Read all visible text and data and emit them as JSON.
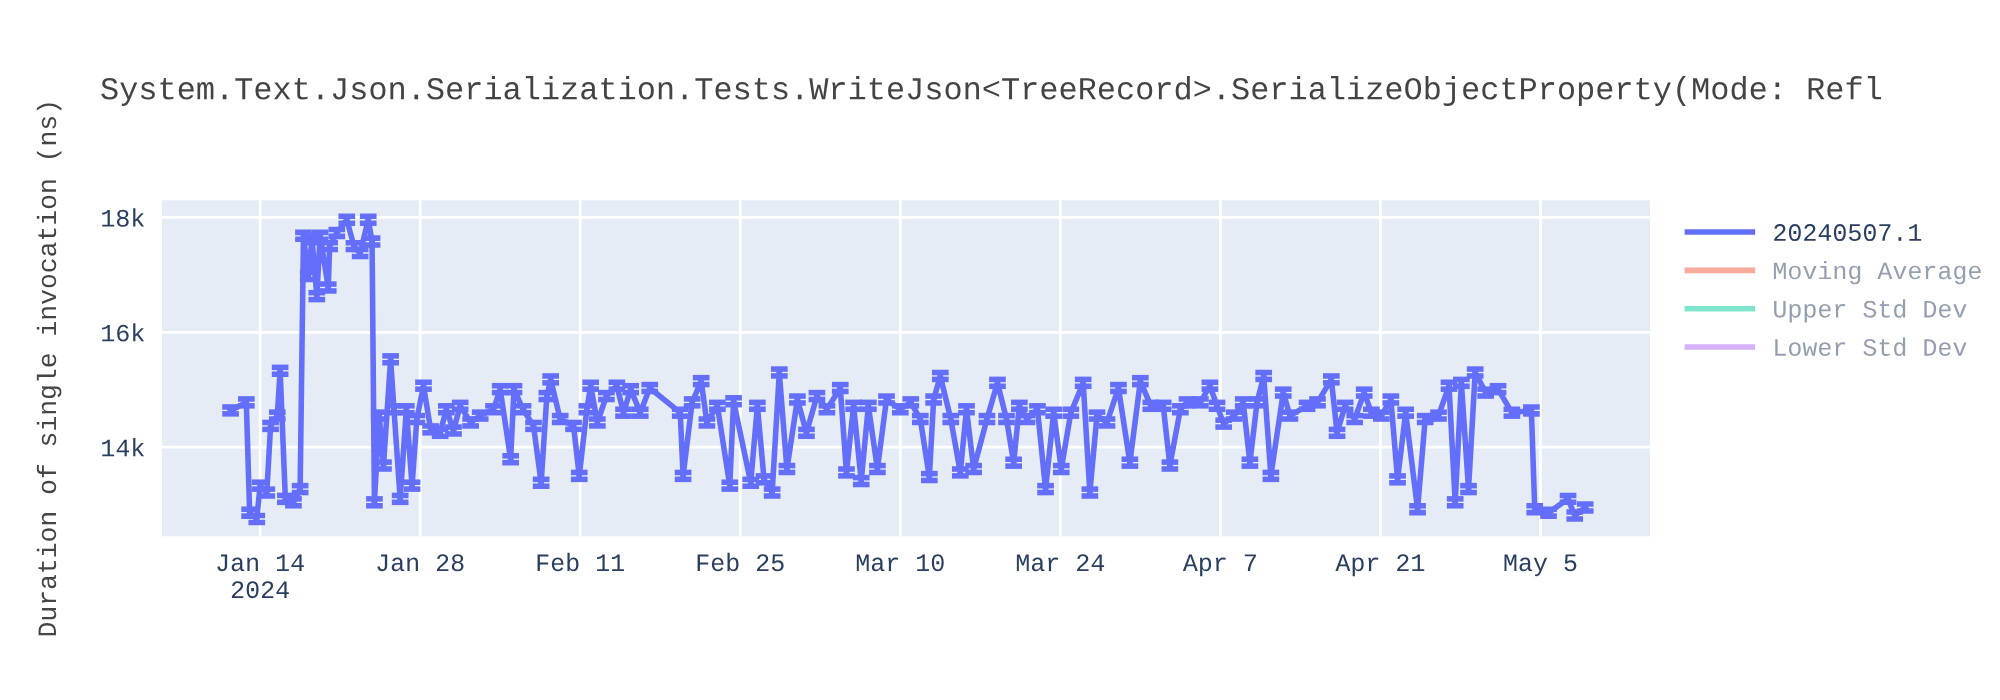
{
  "chart_data": {
    "type": "line",
    "title": "System.Text.Json.Serialization.Tests.WriteJson<TreeRecord>.SerializeObjectProperty(Mode: Refl",
    "ylabel": "Duration of single invocation (ns)",
    "xlim": [
      "2024-01-05T10:00",
      "2024-05-14T14:00"
    ],
    "xticks": [
      {
        "value": "2024-01-14",
        "label": "Jan 14\n2024"
      },
      {
        "value": "2024-01-28",
        "label": "Jan 28"
      },
      {
        "value": "2024-02-11",
        "label": "Feb 11"
      },
      {
        "value": "2024-02-25",
        "label": "Feb 25"
      },
      {
        "value": "2024-03-10",
        "label": "Mar 10"
      },
      {
        "value": "2024-03-24",
        "label": "Mar 24"
      },
      {
        "value": "2024-04-07",
        "label": "Apr 7"
      },
      {
        "value": "2024-04-21",
        "label": "Apr 21"
      },
      {
        "value": "2024-05-05",
        "label": "May 5"
      }
    ],
    "ylim": [
      12450,
      18300
    ],
    "yticks": [
      {
        "value": 14000,
        "label": "14k"
      },
      {
        "value": 16000,
        "label": "16k"
      },
      {
        "value": 18000,
        "label": "18k"
      }
    ],
    "grid": true,
    "legend": "right",
    "marker": "none",
    "line_style": "solid",
    "series": [
      {
        "name": "20240507.1",
        "color": "#636efa",
        "x": [
          "2024-01-11T10:00",
          "2024-01-12T19:00",
          "2024-01-13T02:00",
          "2024-01-13T17:00",
          "2024-01-14T00:00",
          "2024-01-14T14:00",
          "2024-01-14T22:00",
          "2024-01-15T12:00",
          "2024-01-15T18:00",
          "2024-01-16T05:00",
          "2024-01-16T22:00",
          "2024-01-17T12:00",
          "2024-01-17T19:00",
          "2024-01-18T05:00",
          "2024-01-18T13:00",
          "2024-01-18T23:00",
          "2024-01-19T06:00",
          "2024-01-19T23:00",
          "2024-01-20T02:00",
          "2024-01-20T17:00",
          "2024-01-21T14:00",
          "2024-01-22T05:00",
          "2024-01-22T18:00",
          "2024-01-23T11:00",
          "2024-01-23T19:00",
          "2024-01-24T00:00",
          "2024-01-24T10:00",
          "2024-01-24T19:00",
          "2024-01-25T10:00",
          "2024-01-25T17:00",
          "2024-01-26T06:00",
          "2024-01-26T19:00",
          "2024-01-27T07:00",
          "2024-01-27T17:00",
          "2024-01-28T07:00",
          "2024-01-28T22:00",
          "2024-01-29T18:00",
          "2024-01-30T07:00",
          "2024-01-30T22:00",
          "2024-01-31T12:00",
          "2024-02-01T10:00",
          "2024-02-02T06:00",
          "2024-02-03T10:00",
          "2024-02-04T00:00",
          "2024-02-04T22:00",
          "2024-02-05T05:00",
          "2024-02-06T00:00",
          "2024-02-06T22:00",
          "2024-02-07T14:00",
          "2024-02-08T02:00",
          "2024-02-08T10:00",
          "2024-02-09T06:00",
          "2024-02-10T10:00",
          "2024-02-10T22:00",
          "2024-02-11T14:00",
          "2024-02-11T22:00",
          "2024-02-12T12:00",
          "2024-02-13T07:00",
          "2024-02-14T05:00",
          "2024-02-14T19:00",
          "2024-02-15T10:00",
          "2024-02-16T06:00",
          "2024-02-17T02:00",
          "2024-02-19T18:00",
          "2024-02-20T00:00",
          "2024-02-20T19:00",
          "2024-02-21T14:00",
          "2024-02-22T02:00",
          "2024-02-23T00:00",
          "2024-02-24T02:00",
          "2024-02-24T10:00",
          "2024-02-25T22:00",
          "2024-02-26T12:00",
          "2024-02-27T02:00",
          "2024-02-27T19:00",
          "2024-02-28T10:00",
          "2024-02-29T02:00",
          "2024-03-01T00:00",
          "2024-03-01T19:00",
          "2024-03-02T17:00",
          "2024-03-03T14:00",
          "2024-03-04T18:00",
          "2024-03-05T07:00",
          "2024-03-05T22:00",
          "2024-03-06T14:00",
          "2024-03-07T05:00",
          "2024-03-08T00:00",
          "2024-03-08T19:00",
          "2024-03-10T00:00",
          "2024-03-10T22:00",
          "2024-03-11T18:00",
          "2024-03-12T13:00",
          "2024-03-12T22:00",
          "2024-03-13T12:00",
          "2024-03-14T10:00",
          "2024-03-15T06:00",
          "2024-03-15T19:00",
          "2024-03-16T10:00",
          "2024-03-17T14:00",
          "2024-03-18T12:00",
          "2024-03-19T07:00",
          "2024-03-19T22:00",
          "2024-03-20T10:00",
          "2024-03-21T02:00",
          "2024-03-22T00:00",
          "2024-03-22T17:00",
          "2024-03-23T10:00",
          "2024-03-24T02:00",
          "2024-03-24T22:00",
          "2024-03-26T00:00",
          "2024-03-26T14:00",
          "2024-03-27T05:00",
          "2024-03-28T02:00",
          "2024-03-29T02:00",
          "2024-03-30T02:00",
          "2024-03-31T00:00",
          "2024-03-31T22:00",
          "2024-04-02T00:00",
          "2024-04-02T14:00",
          "2024-04-03T12:00",
          "2024-04-04T02:00",
          "2024-04-05T06:00",
          "2024-04-06T02:00",
          "2024-04-06T17:00",
          "2024-04-07T07:00",
          "2024-04-08T05:00",
          "2024-04-09T00:00",
          "2024-04-09T14:00",
          "2024-04-10T05:00",
          "2024-04-10T19:00",
          "2024-04-11T10:00",
          "2024-04-12T12:00",
          "2024-04-13T02:00",
          "2024-04-14T14:00",
          "2024-04-15T12:00",
          "2024-04-16T17:00",
          "2024-04-17T05:00",
          "2024-04-17T22:00",
          "2024-04-18T18:00",
          "2024-04-19T14:00",
          "2024-04-20T05:00",
          "2024-04-21T02:00",
          "2024-04-21T22:00",
          "2024-04-22T12:00",
          "2024-04-23T05:00",
          "2024-04-24T06:00",
          "2024-04-24T22:00",
          "2024-04-26T02:00",
          "2024-04-27T00:00",
          "2024-04-27T13:00",
          "2024-04-28T02:00",
          "2024-04-28T17:00",
          "2024-04-29T07:00",
          "2024-04-30T05:00",
          "2024-05-01T07:00",
          "2024-05-02T12:00",
          "2024-05-04T05:00",
          "2024-05-04T12:00",
          "2024-05-05T17:00",
          "2024-05-07T10:00",
          "2024-05-08T00:00",
          "2024-05-08T22:00"
        ],
        "values": [
          14640,
          14780,
          12860,
          12750,
          13330,
          13210,
          14370,
          14550,
          15330,
          13100,
          13040,
          13270,
          17680,
          16980,
          17620,
          16630,
          17680,
          16780,
          17500,
          17730,
          17960,
          17500,
          17380,
          17960,
          17580,
          13040,
          14550,
          13680,
          15530,
          14660,
          13100,
          14660,
          13330,
          14490,
          15070,
          14310,
          14250,
          14660,
          14290,
          14720,
          14430,
          14550,
          14660,
          15010,
          13790,
          15010,
          14660,
          14370,
          13380,
          14890,
          15180,
          14490,
          14370,
          13500,
          14660,
          15070,
          14430,
          14890,
          15070,
          14600,
          15010,
          14600,
          15030,
          14600,
          13500,
          14780,
          15150,
          14430,
          14720,
          13330,
          14800,
          13380,
          14720,
          13440,
          13210,
          15300,
          13620,
          14830,
          14250,
          14890,
          14660,
          15030,
          13560,
          14720,
          13410,
          14720,
          13620,
          14830,
          14660,
          14780,
          14490,
          13480,
          14830,
          15240,
          14490,
          13560,
          14660,
          13620,
          14490,
          15120,
          14490,
          13730,
          14720,
          14490,
          14660,
          13270,
          14600,
          13620,
          14600,
          15120,
          13210,
          14550,
          14430,
          15030,
          13730,
          15150,
          14720,
          14720,
          13680,
          14660,
          14780,
          14780,
          15070,
          14720,
          14410,
          14550,
          14780,
          13730,
          14780,
          15240,
          13500,
          14950,
          14550,
          14720,
          14780,
          15180,
          14250,
          14720,
          14490,
          14950,
          14600,
          14550,
          14830,
          13440,
          14600,
          12920,
          14490,
          14550,
          15070,
          13040,
          15120,
          13270,
          15300,
          14950,
          15010,
          14600,
          14640,
          12920,
          12860,
          13100,
          12810,
          12950
        ],
        "errors": [
          60,
          60,
          60,
          60,
          60,
          60,
          60,
          60,
          60,
          60,
          60,
          60,
          60,
          60,
          60,
          60,
          60,
          60,
          60,
          60,
          60,
          60,
          60,
          60,
          60,
          60,
          60,
          60,
          60,
          60,
          60,
          60,
          60,
          60,
          60,
          60,
          60,
          60,
          60,
          60,
          60,
          60,
          60,
          60,
          60,
          60,
          60,
          60,
          60,
          60,
          60,
          60,
          60,
          60,
          60,
          60,
          60,
          60,
          60,
          60,
          60,
          60,
          60,
          60,
          60,
          60,
          60,
          60,
          60,
          60,
          60,
          60,
          60,
          60,
          60,
          60,
          60,
          60,
          60,
          60,
          60,
          60,
          60,
          60,
          60,
          60,
          60,
          60,
          60,
          60,
          60,
          60,
          60,
          60,
          60,
          60,
          60,
          60,
          60,
          60,
          60,
          60,
          60,
          60,
          60,
          60,
          60,
          60,
          60,
          60,
          60,
          60,
          60,
          60,
          60,
          60,
          60,
          60,
          60,
          60,
          60,
          60,
          60,
          60,
          60,
          60,
          60,
          60,
          60,
          60,
          60,
          60,
          60,
          60,
          60,
          60,
          60,
          60,
          60,
          60,
          60,
          60,
          60,
          60,
          60,
          60,
          60,
          60,
          60,
          60,
          60,
          60,
          60,
          60,
          60,
          60,
          60,
          60,
          60,
          60,
          60,
          60
        ]
      },
      {
        "name": "Moving Average",
        "color": "#ef553b"
      },
      {
        "name": "Upper Std Dev",
        "color": "#00cc96"
      },
      {
        "name": "Lower Std Dev",
        "color": "#ab63fa"
      }
    ]
  }
}
